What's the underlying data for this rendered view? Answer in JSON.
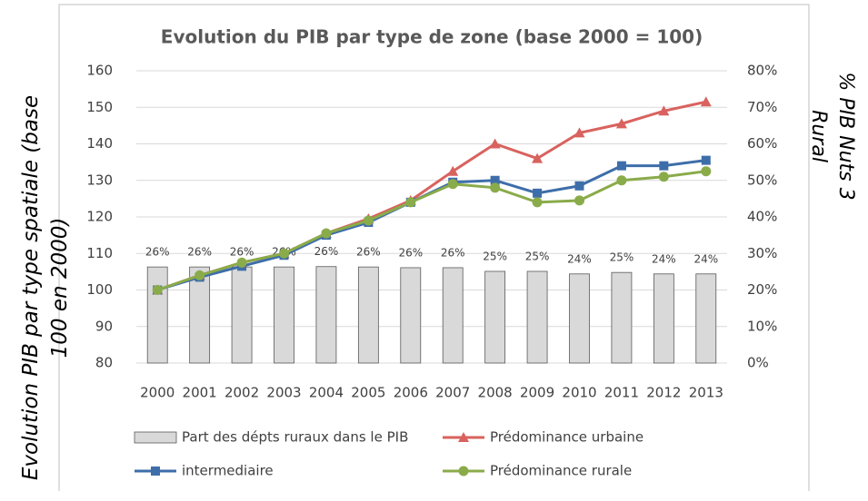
{
  "chart_data": {
    "type": "combo",
    "title": "Evolution du PIB par type de zone (base 2000 = 100)",
    "y_label": "Evolution PIB par type spatiale (base 100 en 2000)",
    "y2_label": "% PIB Nuts 3 Rural",
    "categories": [
      "2000",
      "2001",
      "2002",
      "2003",
      "2004",
      "2005",
      "2006",
      "2007",
      "2008",
      "2009",
      "2010",
      "2011",
      "2012",
      "2013"
    ],
    "ylim": [
      80,
      160
    ],
    "yticks": [
      80,
      90,
      100,
      110,
      120,
      130,
      140,
      150,
      160
    ],
    "y2lim": [
      0,
      80
    ],
    "y2ticks": [
      {
        "value": 0,
        "label": "0%"
      },
      {
        "value": 10,
        "label": "10%"
      },
      {
        "value": 20,
        "label": "20%"
      },
      {
        "value": 30,
        "label": "30%"
      },
      {
        "value": 40,
        "label": "40%"
      },
      {
        "value": 50,
        "label": "50%"
      },
      {
        "value": 60,
        "label": "60%"
      },
      {
        "value": 70,
        "label": "70%"
      },
      {
        "value": 80,
        "label": "80%"
      }
    ],
    "series": [
      {
        "name": "Part des dépts ruraux dans le PIB",
        "type": "bar",
        "axis": "y2",
        "color": "#d9d9d9",
        "values": [
          26.3,
          26.3,
          26.3,
          26.3,
          26.4,
          26.3,
          26.1,
          26.1,
          25.1,
          25.1,
          24.4,
          24.8,
          24.4,
          24.4
        ],
        "value_labels": [
          "26%",
          "26%",
          "26%",
          "26%",
          "26%",
          "26%",
          "26%",
          "26%",
          "25%",
          "25%",
          "24%",
          "25%",
          "24%",
          "24%"
        ]
      },
      {
        "name": "Prédominance urbaine",
        "type": "line",
        "marker": "triangle",
        "color": "#d9625e",
        "values": [
          100,
          104,
          107.5,
          110,
          115.5,
          119.5,
          124.5,
          132.5,
          140,
          136,
          143,
          145.5,
          149,
          151.5
        ]
      },
      {
        "name": "intermediaire",
        "type": "line",
        "marker": "square",
        "color": "#3e6ea9",
        "values": [
          100,
          103.5,
          106.5,
          109.5,
          115,
          118.5,
          124,
          129.5,
          130,
          126.5,
          128.5,
          134,
          134,
          135.5
        ]
      },
      {
        "name": "Prédominance rurale",
        "type": "line",
        "marker": "circle",
        "color": "#8aab4a",
        "values": [
          100,
          104,
          107.5,
          110,
          115.5,
          119,
          124,
          129,
          128,
          124,
          124.5,
          130,
          131,
          132.5
        ]
      }
    ]
  }
}
